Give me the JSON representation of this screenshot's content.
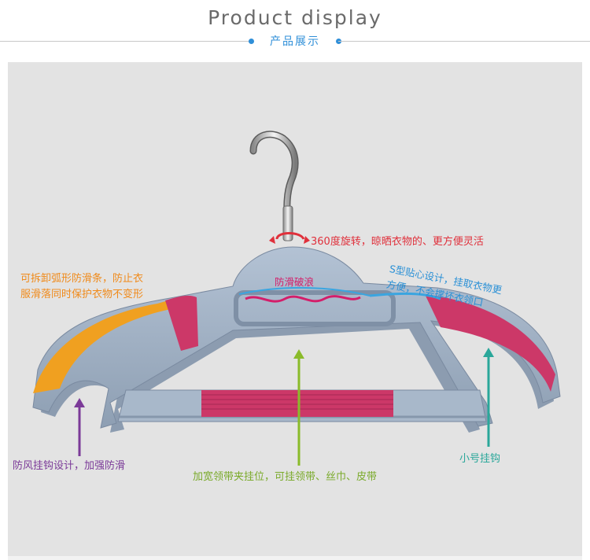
{
  "header": {
    "title": "Product display",
    "subtitle": "产品展示"
  },
  "labels": {
    "rotate": "360度旋转，晾晒衣物的、更方便灵活",
    "anti_slip_wave": "防滑破浪",
    "strip_line1": "可拆卸弧形防滑条，防止衣",
    "strip_line2": "服滑落同时保护衣物不变形",
    "s_shape_line1": "S型贴心设计，挂取衣物更",
    "s_shape_line2": "方便，不会撑坏衣领口",
    "windproof_hook": "防风挂钩设计，加强防滑",
    "clip_slot": "加宽领带夹挂位，可挂领带、丝巾、皮带",
    "small_hook": "小号挂钩"
  },
  "colors": {
    "title_gray": "#6a6a6a",
    "accent_blue": "#2f8fd8",
    "panel_bg": "#e3e3e3",
    "hanger_body": "#9fb0c4",
    "hanger_pad": "#cc3868",
    "strip_orange": "#f0a020",
    "rotate_red": "#e0303b",
    "wave_pink": "#d41e6a",
    "wind_purple": "#7b3a98",
    "clip_green": "#7aaa2a",
    "hook_teal": "#2aa79a"
  }
}
